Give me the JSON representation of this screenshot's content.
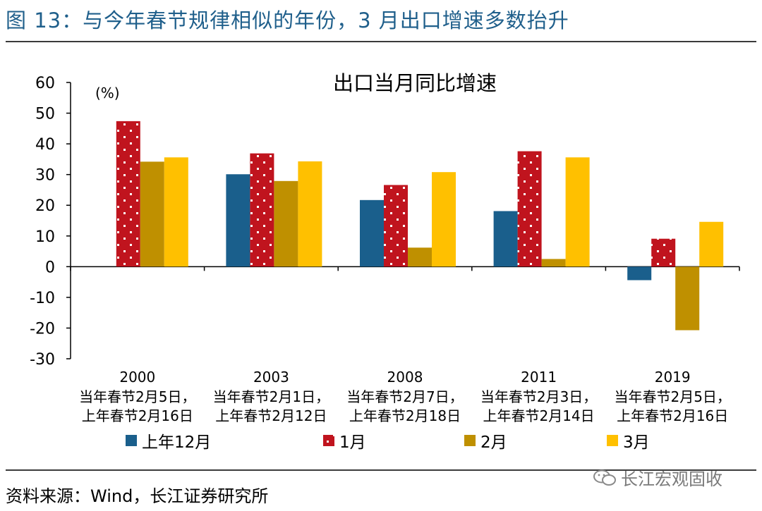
{
  "header": {
    "figure_title": "图 13：与今年春节规律相似的年份，3 月出口增速多数抬升"
  },
  "footer": {
    "source": "资料来源：Wind，长江证券研究所",
    "watermark": "长江宏观固收",
    "watermark_icon": "wechat-icon"
  },
  "chart_data": {
    "type": "bar",
    "title": "出口当月同比增速",
    "unit_label": "(%)",
    "ylim": [
      -30,
      60
    ],
    "yticks": [
      60,
      50,
      40,
      30,
      20,
      10,
      0,
      -10,
      -20,
      -30
    ],
    "categories": [
      "2000",
      "2003",
      "2008",
      "2011",
      "2019"
    ],
    "category_notes": [
      [
        "当年春节2月5日，",
        "上年春节2月16日"
      ],
      [
        "当年春节2月1日，",
        "上年春节2月12日"
      ],
      [
        "当年春节2月7日，",
        "上年春节2月18日"
      ],
      [
        "当年春节2月3日，",
        "上年春节2月14日"
      ],
      [
        "当年春节2月5日，",
        "上年春节2月16日"
      ]
    ],
    "series": [
      {
        "name": "上年12月",
        "values": [
          null,
          30.1,
          21.7,
          18.1,
          -4.4
        ],
        "color": "#1a5f8c",
        "pattern": "solid"
      },
      {
        "name": "1月",
        "values": [
          47.4,
          36.9,
          26.6,
          37.6,
          9.1
        ],
        "color": "#c0141e",
        "pattern": "dotted"
      },
      {
        "name": "2月",
        "values": [
          34.2,
          27.9,
          6.2,
          2.5,
          -20.7
        ],
        "color": "#bf9000",
        "pattern": "solid"
      },
      {
        "name": "3月",
        "values": [
          35.6,
          34.3,
          30.8,
          35.6,
          14.6
        ],
        "color": "#ffc000",
        "pattern": "solid"
      }
    ],
    "grid": false,
    "legend_position": "bottom"
  }
}
